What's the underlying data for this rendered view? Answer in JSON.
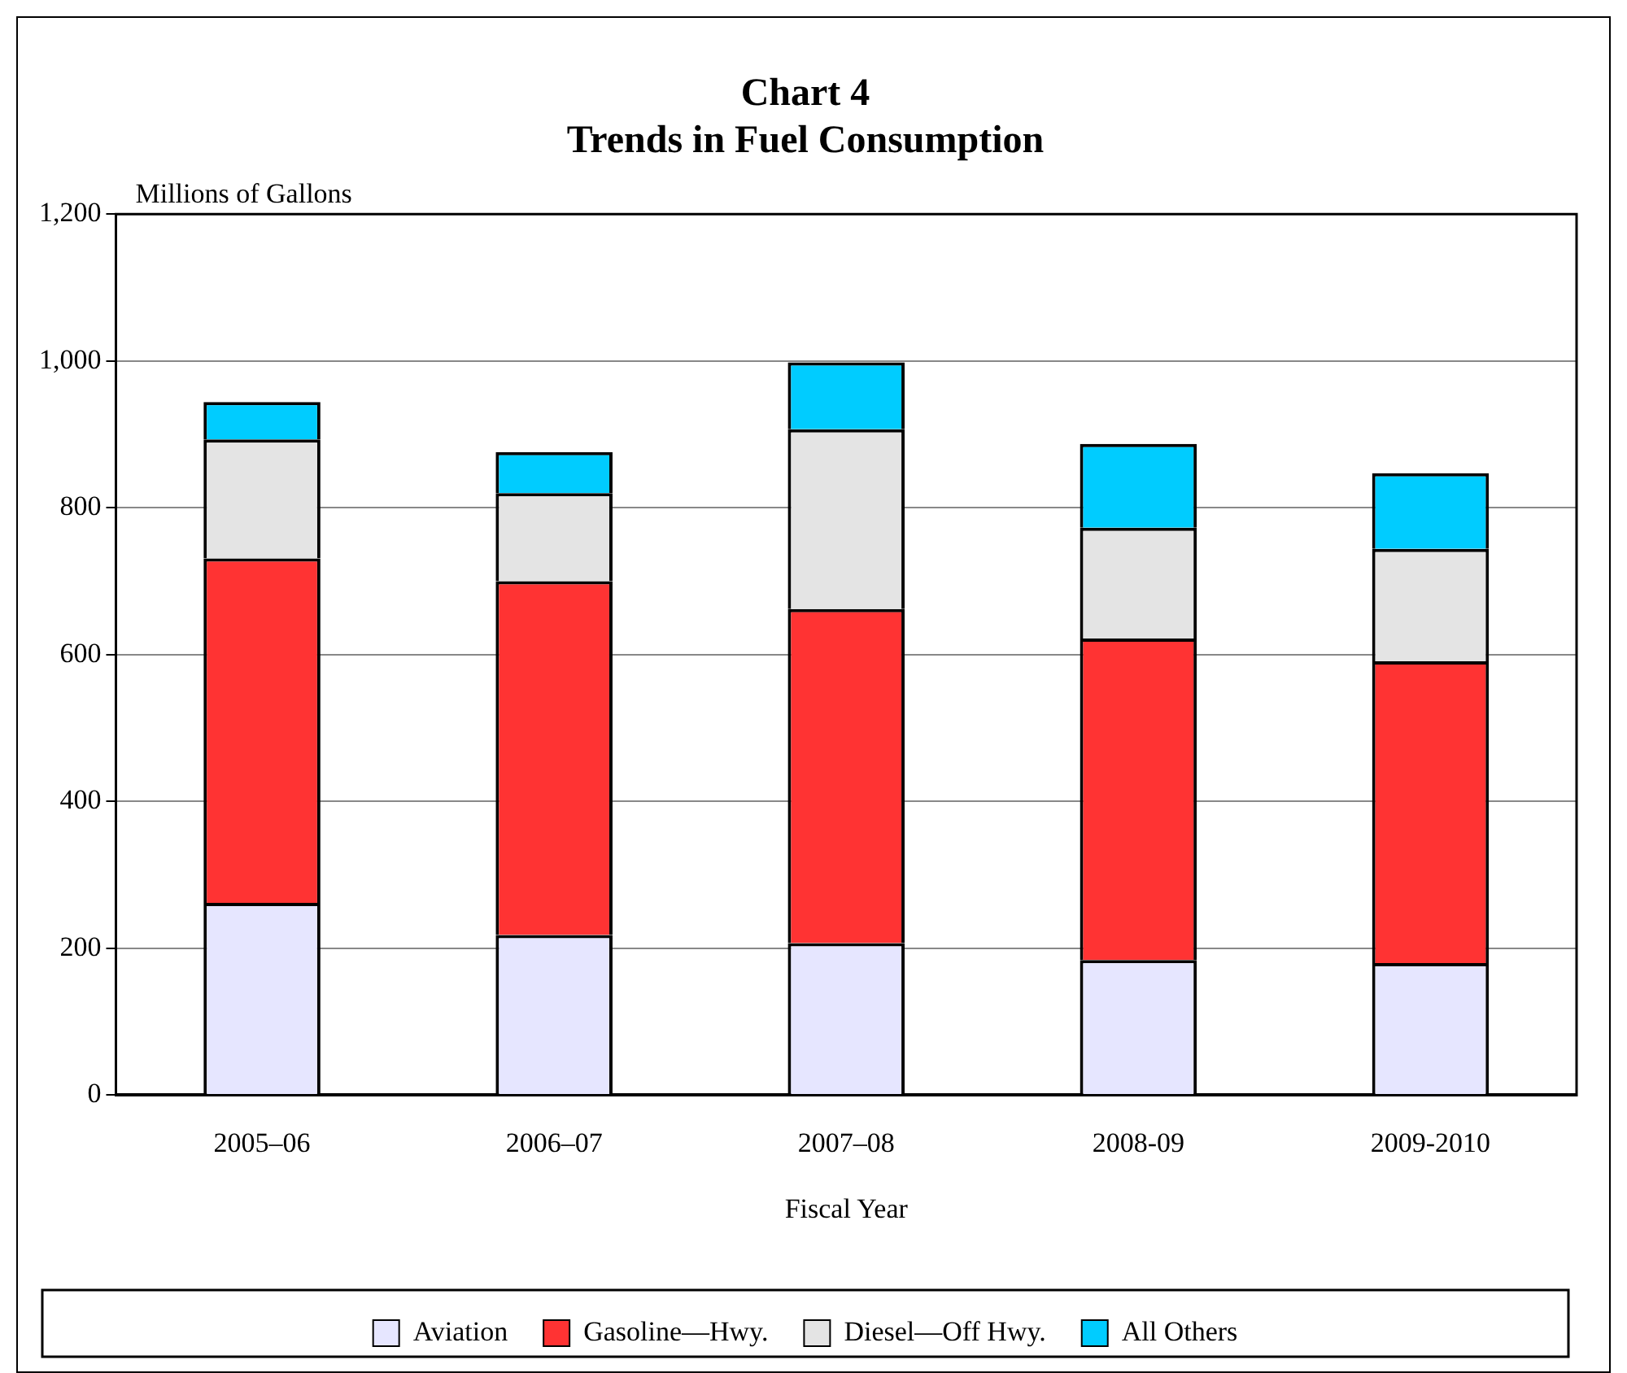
{
  "chart_data": {
    "type": "bar",
    "title": "Chart 4",
    "subtitle": "Trends in Fuel Consumption",
    "xlabel": "Fiscal Year",
    "ylabel": "Millions of Gallons",
    "categories": [
      "2005–06",
      "2006–07",
      "2007–08",
      "2008-09",
      "2009-2010"
    ],
    "series": [
      {
        "name": "Aviation",
        "color": "#e6e6ff",
        "values": [
          262,
          218,
          207,
          184,
          180
        ]
      },
      {
        "name": "Gasoline—Hwy.",
        "color": "#ff3333",
        "values": [
          469,
          482,
          455,
          438,
          411
        ]
      },
      {
        "name": "Diesel—Off Hwy.",
        "color": "#e4e4e4",
        "values": [
          162,
          120,
          245,
          151,
          153
        ]
      },
      {
        "name": "All Others",
        "color": "#00ccff",
        "values": [
          51,
          56,
          91,
          114,
          103
        ]
      }
    ],
    "stacked": true,
    "ylim": [
      0,
      1200
    ],
    "yticks": [
      0,
      200,
      400,
      600,
      800,
      {
        "value": 1000,
        "label": "1,000"
      },
      {
        "value": 1200,
        "label": "1,200"
      }
    ],
    "grid": "y",
    "legend": "bottom"
  }
}
